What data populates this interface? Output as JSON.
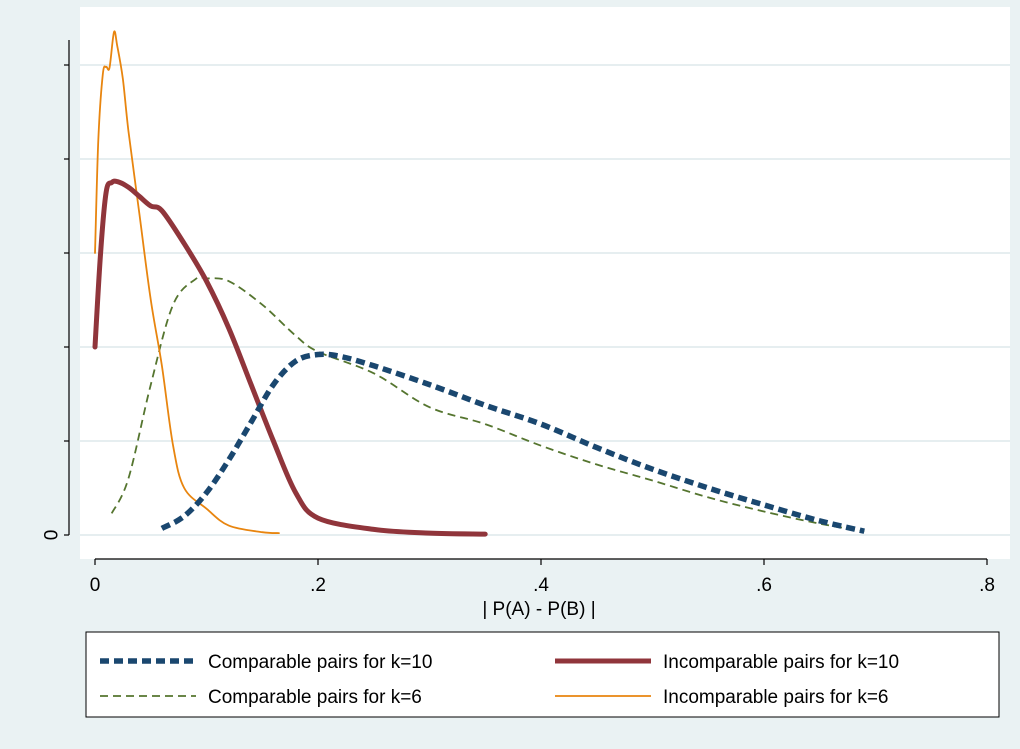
{
  "chart_data": {
    "type": "line",
    "title": "",
    "xlabel": "| P(A) - P(B) |",
    "ylabel": "",
    "xlim": [
      0,
      0.8
    ],
    "ylim": [
      0,
      5
    ],
    "x_ticks": [
      {
        "value": 0,
        "label": "0"
      },
      {
        "value": 0.2,
        "label": ".2"
      },
      {
        "value": 0.4,
        "label": ".4"
      },
      {
        "value": 0.6,
        "label": ".6"
      },
      {
        "value": 0.8,
        "label": ".8"
      }
    ],
    "y_ticks": [
      {
        "value": 0,
        "label": "0"
      },
      {
        "value": 1,
        "label": ""
      },
      {
        "value": 2,
        "label": ""
      },
      {
        "value": 3,
        "label": ""
      },
      {
        "value": 4,
        "label": ""
      },
      {
        "value": 5,
        "label": ""
      }
    ],
    "grid": "horizontal",
    "legend_position": "bottom",
    "colors": {
      "plot_background": "#ffffff",
      "outer_background": "#eaf2f3",
      "grid": "#e6eef0"
    },
    "series": [
      {
        "name": "Comparable pairs for k=10",
        "color": "#1a476f",
        "style": "dash-thick",
        "points": [
          [
            0.06,
            0.07
          ],
          [
            0.08,
            0.2
          ],
          [
            0.1,
            0.45
          ],
          [
            0.12,
            0.8
          ],
          [
            0.14,
            1.2
          ],
          [
            0.16,
            1.6
          ],
          [
            0.18,
            1.85
          ],
          [
            0.2,
            1.92
          ],
          [
            0.22,
            1.9
          ],
          [
            0.25,
            1.8
          ],
          [
            0.3,
            1.6
          ],
          [
            0.35,
            1.38
          ],
          [
            0.4,
            1.18
          ],
          [
            0.45,
            0.93
          ],
          [
            0.5,
            0.7
          ],
          [
            0.55,
            0.5
          ],
          [
            0.6,
            0.32
          ],
          [
            0.65,
            0.15
          ],
          [
            0.69,
            0.04
          ]
        ]
      },
      {
        "name": "Incomparable pairs for k=10",
        "color": "#90353b",
        "style": "solid-thick",
        "points": [
          [
            0,
            2.0
          ],
          [
            0.005,
            3.0
          ],
          [
            0.01,
            3.65
          ],
          [
            0.015,
            3.75
          ],
          [
            0.02,
            3.76
          ],
          [
            0.03,
            3.7
          ],
          [
            0.04,
            3.6
          ],
          [
            0.05,
            3.5
          ],
          [
            0.06,
            3.45
          ],
          [
            0.08,
            3.1
          ],
          [
            0.1,
            2.7
          ],
          [
            0.12,
            2.2
          ],
          [
            0.14,
            1.6
          ],
          [
            0.16,
            1.0
          ],
          [
            0.18,
            0.45
          ],
          [
            0.2,
            0.18
          ],
          [
            0.25,
            0.06
          ],
          [
            0.3,
            0.02
          ],
          [
            0.35,
            0.01
          ]
        ]
      },
      {
        "name": "Comparable pairs for k=6",
        "color": "#55752f",
        "style": "dash-thin",
        "points": [
          [
            0.015,
            0.23
          ],
          [
            0.03,
            0.6
          ],
          [
            0.05,
            1.6
          ],
          [
            0.07,
            2.45
          ],
          [
            0.09,
            2.72
          ],
          [
            0.1,
            2.73
          ],
          [
            0.12,
            2.7
          ],
          [
            0.15,
            2.45
          ],
          [
            0.18,
            2.12
          ],
          [
            0.2,
            1.95
          ],
          [
            0.25,
            1.72
          ],
          [
            0.3,
            1.36
          ],
          [
            0.35,
            1.18
          ],
          [
            0.4,
            0.95
          ],
          [
            0.45,
            0.75
          ],
          [
            0.5,
            0.58
          ],
          [
            0.55,
            0.4
          ],
          [
            0.6,
            0.25
          ],
          [
            0.65,
            0.12
          ],
          [
            0.69,
            0.04
          ]
        ]
      },
      {
        "name": "Incomparable pairs for k=6",
        "color": "#e8850f",
        "style": "solid-thin",
        "points": [
          [
            0,
            3.0
          ],
          [
            0.003,
            4.2
          ],
          [
            0.007,
            4.9
          ],
          [
            0.01,
            4.98
          ],
          [
            0.013,
            4.97
          ],
          [
            0.017,
            5.35
          ],
          [
            0.02,
            5.2
          ],
          [
            0.025,
            4.85
          ],
          [
            0.03,
            4.3
          ],
          [
            0.04,
            3.4
          ],
          [
            0.05,
            2.5
          ],
          [
            0.06,
            1.8
          ],
          [
            0.07,
            0.95
          ],
          [
            0.08,
            0.5
          ],
          [
            0.1,
            0.28
          ],
          [
            0.12,
            0.1
          ],
          [
            0.15,
            0.03
          ],
          [
            0.165,
            0.02
          ]
        ]
      }
    ]
  }
}
